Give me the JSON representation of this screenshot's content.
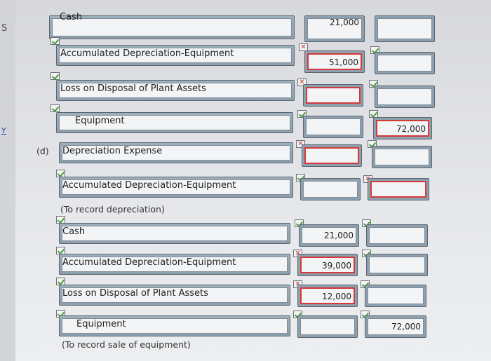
{
  "edge": {
    "s": "S",
    "y": "Y"
  },
  "top_cut": {
    "label": "Cash",
    "value": "21,000"
  },
  "rows": [
    {
      "label": "Accumulated Depreciation-Equipment",
      "debit": "51,000",
      "credit": ""
    },
    {
      "label": "Loss on Disposal of Plant Assets",
      "debit": "",
      "credit": ""
    },
    {
      "label": "Equipment",
      "debit": "",
      "credit": "72,000"
    },
    {
      "label": "Depreciation Expense",
      "debit": "",
      "credit": ""
    },
    {
      "label": "Accumulated Depreciation-Equipment",
      "debit": "",
      "credit": ""
    },
    {
      "label": "Cash",
      "debit": "21,000",
      "credit": ""
    },
    {
      "label": "Accumulated Depreciation-Equipment",
      "debit": "39,000",
      "credit": ""
    },
    {
      "label": "Loss on Disposal of Plant Assets",
      "debit": "12,000",
      "credit": ""
    },
    {
      "label": "Equipment",
      "debit": "",
      "credit": "72,000"
    }
  ],
  "part_d": "(d)",
  "notes": {
    "depreciation": "(To record depreciation)",
    "sale": "(To record sale of equipment)"
  }
}
